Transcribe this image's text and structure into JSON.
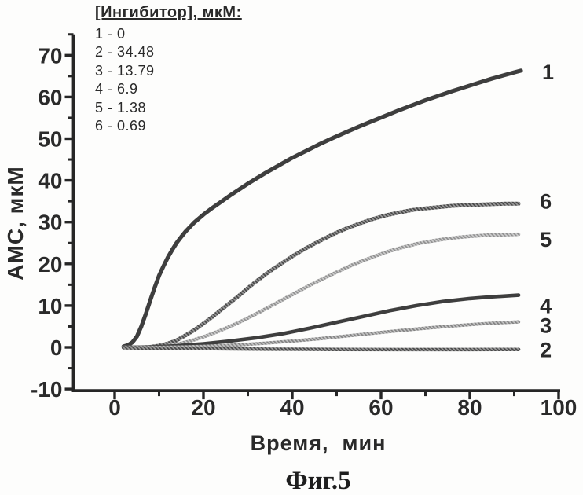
{
  "figure": {
    "caption": "Фиг.5",
    "xlabel": "Время,  мин",
    "ylabel": "АМС, мкМ"
  },
  "legend": {
    "title": "[Ингибитор], мкМ:",
    "items": [
      "1 - 0",
      "2 - 34.48",
      "3 - 13.79",
      "4 - 6.9",
      "5 - 1.38",
      "6 - 0.69"
    ]
  },
  "chart_data": {
    "type": "line",
    "xlabel": "Время, мин",
    "ylabel": "АМС, мкМ",
    "xlim": [
      -10,
      100
    ],
    "ylim": [
      -10,
      75
    ],
    "x_ticks_major": [
      0,
      20,
      40,
      60,
      80,
      100
    ],
    "x_ticks_minor": [
      10,
      30,
      50,
      70,
      90
    ],
    "y_ticks_major": [
      -10,
      0,
      10,
      20,
      30,
      40,
      50,
      60,
      70
    ],
    "y_ticks_minor": [
      -5,
      5,
      15,
      25,
      35,
      45,
      55,
      65,
      75
    ],
    "grid": false,
    "legend_position": "top-left",
    "series": [
      {
        "name": "1",
        "inhibitor_uM": 0,
        "style": "solid-dark",
        "width": 5.2,
        "points": [
          [
            2,
            0.2
          ],
          [
            3,
            0.5
          ],
          [
            4,
            1.2
          ],
          [
            5,
            2.6
          ],
          [
            6,
            5.0
          ],
          [
            7,
            8.0
          ],
          [
            8,
            11.2
          ],
          [
            9,
            14.3
          ],
          [
            10,
            17.2
          ],
          [
            11,
            19.5
          ],
          [
            12,
            21.6
          ],
          [
            13,
            23.4
          ],
          [
            14,
            25.1
          ],
          [
            15,
            26.5
          ],
          [
            16,
            27.8
          ],
          [
            17,
            28.9
          ],
          [
            18,
            30
          ],
          [
            19,
            30.9
          ],
          [
            20,
            31.8
          ],
          [
            22,
            33.4
          ],
          [
            24,
            34.9
          ],
          [
            26,
            36.4
          ],
          [
            28,
            37.8
          ],
          [
            30,
            39.2
          ],
          [
            32,
            40.5
          ],
          [
            34,
            41.8
          ],
          [
            36,
            43
          ],
          [
            38,
            44.2
          ],
          [
            40,
            45.4
          ],
          [
            43,
            47
          ],
          [
            46,
            48.6
          ],
          [
            49,
            50.1
          ],
          [
            52,
            51.5
          ],
          [
            55,
            52.9
          ],
          [
            58,
            54.2
          ],
          [
            61,
            55.5
          ],
          [
            64,
            56.8
          ],
          [
            67,
            58
          ],
          [
            70,
            59.2
          ],
          [
            73,
            60.3
          ],
          [
            76,
            61.4
          ],
          [
            79,
            62.4
          ],
          [
            82,
            63.4
          ],
          [
            85,
            64.4
          ],
          [
            88,
            65.3
          ],
          [
            90,
            65.9
          ],
          [
            91.5,
            66.3
          ]
        ]
      },
      {
        "name": "6",
        "inhibitor_uM": 0.69,
        "style": "hatch-dark",
        "width": 5,
        "points": [
          [
            2,
            0
          ],
          [
            6,
            0
          ],
          [
            8,
            0.1
          ],
          [
            10,
            0.4
          ],
          [
            12,
            0.9
          ],
          [
            14,
            1.7
          ],
          [
            16,
            2.9
          ],
          [
            18,
            4.2
          ],
          [
            20,
            5.7
          ],
          [
            22,
            7.3
          ],
          [
            24,
            9
          ],
          [
            26,
            10.7
          ],
          [
            28,
            12.4
          ],
          [
            30,
            14.2
          ],
          [
            32,
            15.9
          ],
          [
            34,
            17.5
          ],
          [
            36,
            19
          ],
          [
            38,
            20.4
          ],
          [
            40,
            21.8
          ],
          [
            43,
            23.7
          ],
          [
            46,
            25.4
          ],
          [
            49,
            27
          ],
          [
            52,
            28.4
          ],
          [
            55,
            29.6
          ],
          [
            58,
            30.7
          ],
          [
            61,
            31.6
          ],
          [
            64,
            32.3
          ],
          [
            67,
            32.9
          ],
          [
            70,
            33.3
          ],
          [
            73,
            33.6
          ],
          [
            76,
            33.9
          ],
          [
            80,
            34.1
          ],
          [
            85,
            34.3
          ],
          [
            88,
            34.4
          ],
          [
            91,
            34.4
          ]
        ]
      },
      {
        "name": "5",
        "inhibitor_uM": 1.38,
        "style": "hatch-light",
        "width": 4.5,
        "points": [
          [
            2,
            0
          ],
          [
            8,
            0
          ],
          [
            11,
            0.2
          ],
          [
            14,
            0.7
          ],
          [
            17,
            1.5
          ],
          [
            20,
            2.5
          ],
          [
            23,
            3.7
          ],
          [
            26,
            5
          ],
          [
            29,
            6.5
          ],
          [
            32,
            8.1
          ],
          [
            35,
            9.8
          ],
          [
            38,
            11.5
          ],
          [
            41,
            13.2
          ],
          [
            44,
            14.9
          ],
          [
            47,
            16.5
          ],
          [
            50,
            18
          ],
          [
            53,
            19.5
          ],
          [
            56,
            20.8
          ],
          [
            59,
            22
          ],
          [
            62,
            23.1
          ],
          [
            65,
            24
          ],
          [
            68,
            24.8
          ],
          [
            71,
            25.4
          ],
          [
            74,
            25.9
          ],
          [
            77,
            26.3
          ],
          [
            80,
            26.6
          ],
          [
            84,
            26.9
          ],
          [
            88,
            27
          ],
          [
            91,
            27.1
          ]
        ]
      },
      {
        "name": "4",
        "inhibitor_uM": 6.9,
        "style": "solid-dark",
        "width": 4.6,
        "points": [
          [
            2,
            0
          ],
          [
            8,
            0.05
          ],
          [
            14,
            0.35
          ],
          [
            20,
            0.85
          ],
          [
            26,
            1.5
          ],
          [
            32,
            2.3
          ],
          [
            38,
            3.3
          ],
          [
            44,
            4.6
          ],
          [
            50,
            6
          ],
          [
            56,
            7.4
          ],
          [
            62,
            8.8
          ],
          [
            68,
            10
          ],
          [
            74,
            11
          ],
          [
            80,
            11.7
          ],
          [
            85,
            12.1
          ],
          [
            91,
            12.5
          ]
        ]
      },
      {
        "name": "3",
        "inhibitor_uM": 13.79,
        "style": "hatch-mid",
        "width": 4.2,
        "points": [
          [
            2,
            0
          ],
          [
            10,
            0
          ],
          [
            16,
            0.1
          ],
          [
            22,
            0.3
          ],
          [
            28,
            0.6
          ],
          [
            34,
            1.0
          ],
          [
            40,
            1.5
          ],
          [
            46,
            2.05
          ],
          [
            52,
            2.7
          ],
          [
            58,
            3.35
          ],
          [
            64,
            4.0
          ],
          [
            70,
            4.6
          ],
          [
            76,
            5.1
          ],
          [
            82,
            5.6
          ],
          [
            87,
            5.9
          ],
          [
            91,
            6.1
          ]
        ]
      },
      {
        "name": "2",
        "inhibitor_uM": 34.48,
        "style": "hatch-dark",
        "width": 4.5,
        "points": [
          [
            2,
            -0.1
          ],
          [
            10,
            -0.2
          ],
          [
            20,
            -0.3
          ],
          [
            35,
            -0.45
          ],
          [
            50,
            -0.5
          ],
          [
            65,
            -0.55
          ],
          [
            80,
            -0.55
          ],
          [
            91,
            -0.5
          ]
        ]
      }
    ]
  }
}
